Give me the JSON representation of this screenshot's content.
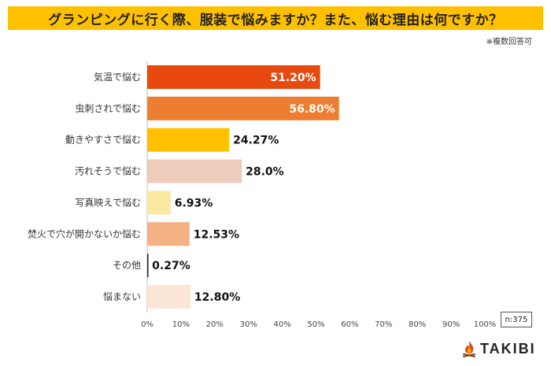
{
  "title": "グランピングに行く際、服装で悩みますか？また、悩む理由は何ですか？",
  "note": "※複数回答可",
  "sample_size": "n:375",
  "brand": "TAKIBI",
  "chart_data": {
    "type": "bar",
    "orientation": "horizontal",
    "categories": [
      "気温で悩む",
      "虫刺されで悩む",
      "動きやすさで悩む",
      "汚れそうで悩む",
      "写真映えで悩む",
      "焚火で穴が開かないか悩む",
      "その他",
      "悩まない"
    ],
    "values": [
      51.2,
      56.8,
      24.27,
      28.0,
      6.93,
      12.53,
      0.27,
      12.8
    ],
    "value_labels": [
      "51.20%",
      "56.80%",
      "24.27%",
      "28.0%",
      "6.93%",
      "12.53%",
      "0.27%",
      "12.80%"
    ],
    "label_inside": [
      true,
      true,
      false,
      false,
      false,
      false,
      false,
      false
    ],
    "colors": [
      "#e8490f",
      "#ed7d31",
      "#ffc000",
      "#efcbbb",
      "#fbe9a0",
      "#f4b183",
      "#222222",
      "#fbe5d6"
    ],
    "xlim": [
      0,
      100
    ],
    "x_ticks": [
      "0%",
      "10%",
      "20%",
      "30%",
      "40%",
      "50%",
      "60%",
      "70%",
      "80%",
      "90%",
      "100%"
    ],
    "grid": false
  }
}
